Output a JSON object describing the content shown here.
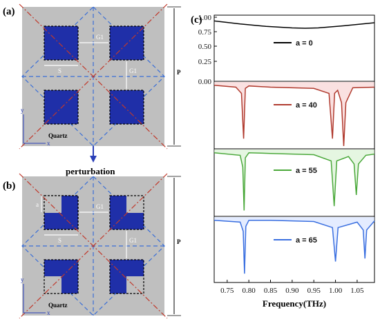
{
  "panels": {
    "a": {
      "label": "(a)",
      "quartz": "Quartz",
      "S": "S",
      "G1": "G1",
      "G2": "G1",
      "P": "P",
      "y": "y",
      "x": "x"
    },
    "b": {
      "label": "(b)",
      "quartz": "Quartz",
      "S": "S",
      "G1": "G1",
      "G2": "G1",
      "P": "P",
      "y": "y",
      "x": "x",
      "a": "a"
    },
    "c": {
      "label": "(c)"
    },
    "arrow_text": "perturbation"
  },
  "colors": {
    "substrate": "#bfbfbf",
    "metal": "#1f2fa8",
    "diag_red": "#c0392b",
    "diag_blue": "#3b6fd6"
  },
  "chart_data": {
    "type": "line",
    "xlabel": "Frequency(THz)",
    "xlim": [
      0.72,
      1.09
    ],
    "xticks": [
      "0.75",
      "0.80",
      "0.85",
      "0.90",
      "0.95",
      "1.00",
      "1.05"
    ],
    "xtick_values": [
      0.75,
      0.8,
      0.85,
      0.9,
      0.95,
      1.0,
      1.05
    ],
    "yticks_top": [
      "1.00",
      "0.75",
      "0.50",
      "0.25",
      "0.00"
    ],
    "ylim": [
      0,
      1
    ],
    "series": [
      {
        "name": "a = 0",
        "color": "#000000",
        "x": [
          0.72,
          0.78,
          0.84,
          0.9,
          0.93,
          0.96,
          1.02,
          1.09
        ],
        "y": [
          0.95,
          0.9,
          0.86,
          0.835,
          0.83,
          0.835,
          0.87,
          0.92
        ]
      },
      {
        "name": "a = 40",
        "color": "#b03a2e",
        "x": [
          0.72,
          0.77,
          0.783,
          0.788,
          0.792,
          0.8,
          0.85,
          0.95,
          0.985,
          0.993,
          0.998,
          1.005,
          1.014,
          1.019,
          1.024,
          1.04,
          1.09
        ],
        "y": [
          0.98,
          0.95,
          0.85,
          0.12,
          0.93,
          0.97,
          0.95,
          0.93,
          0.85,
          0.12,
          0.85,
          0.9,
          0.7,
          0.0,
          0.7,
          0.94,
          0.95
        ]
      },
      {
        "name": "a = 55",
        "color": "#4aa83a",
        "x": [
          0.72,
          0.78,
          0.786,
          0.789,
          0.792,
          0.8,
          0.85,
          0.95,
          0.99,
          0.997,
          1.003,
          1.03,
          1.043,
          1.048,
          1.053,
          1.07,
          1.09
        ],
        "y": [
          0.98,
          0.94,
          0.75,
          0.05,
          0.9,
          0.98,
          0.97,
          0.95,
          0.85,
          0.12,
          0.85,
          0.92,
          0.8,
          0.3,
          0.8,
          0.94,
          0.96
        ]
      },
      {
        "name": "a = 65",
        "color": "#3a6fe0",
        "x": [
          0.72,
          0.78,
          0.787,
          0.79,
          0.793,
          0.8,
          0.85,
          0.95,
          0.993,
          1.0,
          1.006,
          1.05,
          1.064,
          1.068,
          1.072,
          1.09
        ],
        "y": [
          0.98,
          0.95,
          0.8,
          0.1,
          0.88,
          0.98,
          0.98,
          0.96,
          0.86,
          0.3,
          0.86,
          0.95,
          0.82,
          0.35,
          0.82,
          0.97
        ]
      }
    ]
  }
}
